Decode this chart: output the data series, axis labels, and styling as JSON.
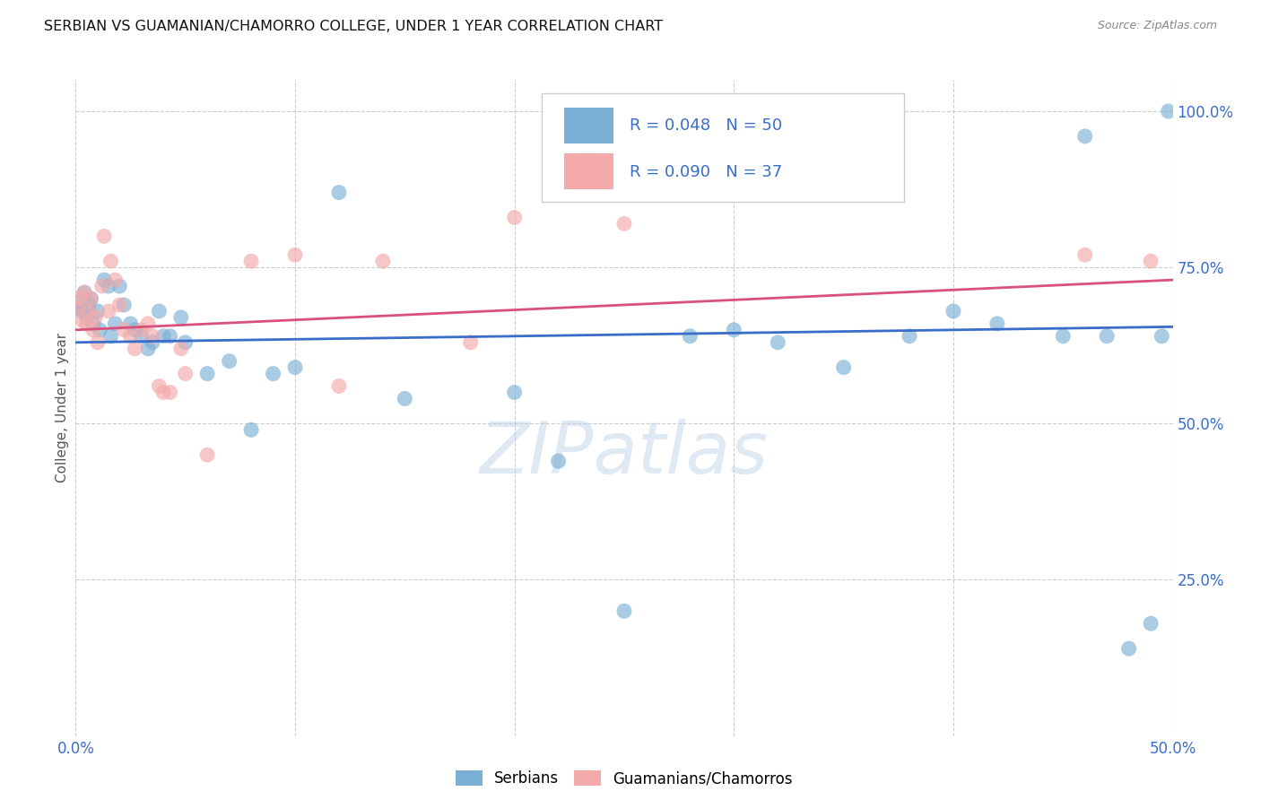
{
  "title": "SERBIAN VS GUAMANIAN/CHAMORRO COLLEGE, UNDER 1 YEAR CORRELATION CHART",
  "source": "Source: ZipAtlas.com",
  "ylabel": "College, Under 1 year",
  "xlim": [
    0.0,
    0.5
  ],
  "ylim": [
    0.0,
    1.05
  ],
  "xtick_positions": [
    0.0,
    0.1,
    0.2,
    0.3,
    0.4,
    0.5
  ],
  "xtick_labels": [
    "0.0%",
    "",
    "",
    "",
    "",
    "50.0%"
  ],
  "ytick_labels_right": [
    "100.0%",
    "75.0%",
    "50.0%",
    "25.0%"
  ],
  "ytick_positions_right": [
    1.0,
    0.75,
    0.5,
    0.25
  ],
  "ytick_positions_grid": [
    0.25,
    0.5,
    0.75,
    1.0
  ],
  "legend_r1": "R = 0.048",
  "legend_n1": "N = 50",
  "legend_r2": "R = 0.090",
  "legend_n2": "N = 37",
  "legend_labels": [
    "Serbians",
    "Guamanians/Chamorros"
  ],
  "color_serbian": "#7BAFD4",
  "color_guamanian": "#F4AAAA",
  "color_line_serbian": "#3A6DC9",
  "color_line_guamanian": "#D9517A",
  "watermark": "ZIPatlas",
  "background_color": "#FFFFFF",
  "serbian_x": [
    0.001,
    0.002,
    0.003,
    0.004,
    0.005,
    0.006,
    0.007,
    0.008,
    0.01,
    0.011,
    0.013,
    0.015,
    0.016,
    0.018,
    0.02,
    0.022,
    0.025,
    0.027,
    0.03,
    0.033,
    0.035,
    0.038,
    0.04,
    0.043,
    0.048,
    0.05,
    0.06,
    0.07,
    0.08,
    0.09,
    0.1,
    0.12,
    0.15,
    0.2,
    0.22,
    0.25,
    0.28,
    0.3,
    0.32,
    0.35,
    0.38,
    0.4,
    0.42,
    0.45,
    0.46,
    0.47,
    0.48,
    0.49,
    0.495,
    0.498
  ],
  "serbian_y": [
    0.685,
    0.695,
    0.68,
    0.71,
    0.67,
    0.69,
    0.7,
    0.66,
    0.68,
    0.65,
    0.73,
    0.72,
    0.64,
    0.66,
    0.72,
    0.69,
    0.66,
    0.65,
    0.64,
    0.62,
    0.63,
    0.68,
    0.64,
    0.64,
    0.67,
    0.63,
    0.58,
    0.6,
    0.49,
    0.58,
    0.59,
    0.87,
    0.54,
    0.55,
    0.44,
    0.2,
    0.64,
    0.65,
    0.63,
    0.59,
    0.64,
    0.68,
    0.66,
    0.64,
    0.96,
    0.64,
    0.14,
    0.18,
    0.64,
    1.0
  ],
  "guamanian_x": [
    0.001,
    0.002,
    0.003,
    0.004,
    0.005,
    0.006,
    0.007,
    0.008,
    0.009,
    0.01,
    0.012,
    0.013,
    0.015,
    0.016,
    0.018,
    0.02,
    0.022,
    0.025,
    0.027,
    0.03,
    0.033,
    0.035,
    0.038,
    0.04,
    0.043,
    0.048,
    0.05,
    0.06,
    0.08,
    0.1,
    0.12,
    0.14,
    0.18,
    0.2,
    0.25,
    0.46,
    0.49
  ],
  "guamanian_y": [
    0.685,
    0.7,
    0.665,
    0.71,
    0.66,
    0.68,
    0.7,
    0.65,
    0.67,
    0.63,
    0.72,
    0.8,
    0.68,
    0.76,
    0.73,
    0.69,
    0.65,
    0.64,
    0.62,
    0.65,
    0.66,
    0.64,
    0.56,
    0.55,
    0.55,
    0.62,
    0.58,
    0.45,
    0.76,
    0.77,
    0.56,
    0.76,
    0.63,
    0.83,
    0.82,
    0.77,
    0.76
  ],
  "serbian_trend_x": [
    0.0,
    0.5
  ],
  "serbian_trend_y": [
    0.63,
    0.655
  ],
  "guamanian_trend_x": [
    0.0,
    0.5
  ],
  "guamanian_trend_y": [
    0.65,
    0.73
  ]
}
